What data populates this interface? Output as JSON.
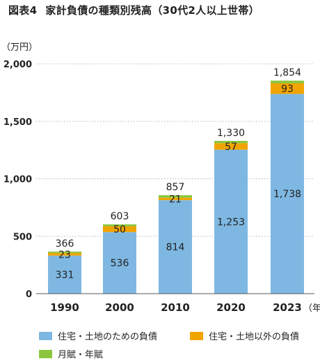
{
  "chart_data": {
    "type": "bar",
    "stacked": true,
    "figure_label": "図表4",
    "title": "家計負債の種類別残高（30代2人以上世帯）",
    "ylabel": "（万円）",
    "xunit": "（年）",
    "categories": [
      "1990",
      "2000",
      "2010",
      "2020",
      "2023"
    ],
    "ylim": [
      0,
      2000
    ],
    "yticks": [
      0,
      500,
      1000,
      1500,
      2000
    ],
    "ytick_labels": [
      "0",
      "500",
      "1,000",
      "1,500",
      "2,000"
    ],
    "grid": "horizontal-dotted",
    "legend_position": "bottom",
    "series": [
      {
        "name": "住宅・土地のための負債",
        "color": "#7eb8e2",
        "values": [
          331,
          536,
          814,
          1253,
          1738
        ],
        "labels": [
          "331",
          "536",
          "814",
          "1,253",
          "1,738"
        ]
      },
      {
        "name": "住宅・土地以外の負債",
        "color": "#f0a400",
        "values": [
          23,
          50,
          21,
          57,
          93
        ],
        "labels": [
          "23",
          "50",
          "21",
          "57",
          "93"
        ]
      },
      {
        "name": "月賦・年賦",
        "color": "#8cc63f",
        "values": [
          12,
          17,
          22,
          20,
          23
        ]
      }
    ],
    "totals": [
      366,
      603,
      857,
      1330,
      1854
    ],
    "total_labels": [
      "366",
      "603",
      "857",
      "1,330",
      "1,854"
    ]
  }
}
